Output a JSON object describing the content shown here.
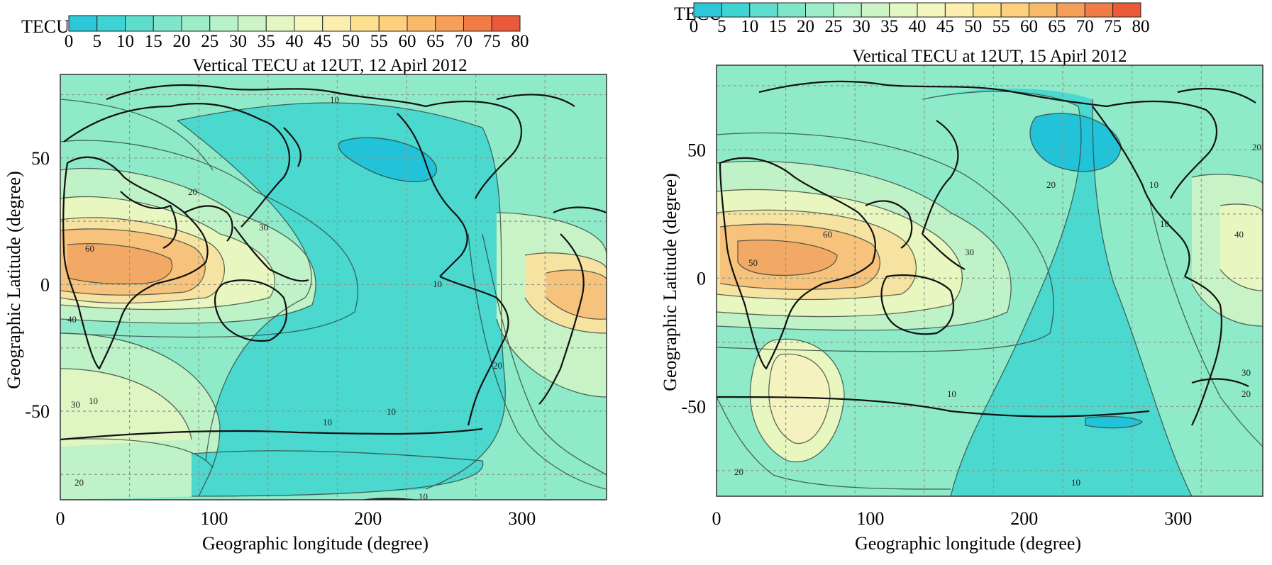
{
  "colorbar": {
    "unit_label": "TECU",
    "ticks": [
      "0",
      "5",
      "10",
      "15",
      "20",
      "25",
      "30",
      "35",
      "40",
      "45",
      "50",
      "55",
      "60",
      "65",
      "70",
      "75",
      "80"
    ],
    "colors": [
      "#2cc7d8",
      "#3fd3d3",
      "#5fddcc",
      "#80e6c9",
      "#9dedc8",
      "#b7f2c8",
      "#cdf4c6",
      "#e2f7c4",
      "#f3f6bf",
      "#fbeeae",
      "#fde18f",
      "#fcd07c",
      "#f9bb6a",
      "#f59f58",
      "#f07d45",
      "#ea5a38"
    ]
  },
  "maps": [
    {
      "title": "Vertical TECU at 12UT, 12 Apirl 2012",
      "y_ticks": [
        "50",
        "0",
        "-50"
      ],
      "x_ticks": [
        "0",
        "100",
        "200",
        "300"
      ],
      "x_label": "Geographic longitude (degree)",
      "y_label": "Geographic Latitude (degree)",
      "contour_labels": [
        "10",
        "10",
        "10",
        "10",
        "20",
        "20",
        "30",
        "30",
        "40",
        "60",
        "10",
        "10",
        "20"
      ]
    },
    {
      "title": "Vertical TECU at 12UT, 15 Apirl 2012",
      "y_ticks": [
        "50",
        "0",
        "-50"
      ],
      "x_ticks": [
        "0",
        "100",
        "200",
        "300"
      ],
      "x_label": "Geographic longitude (degree)",
      "y_label": "Geographic Latitude (degree)",
      "contour_labels": [
        "20",
        "10",
        "30",
        "50",
        "60",
        "10",
        "10",
        "20",
        "30",
        "40",
        "20",
        "10",
        "20"
      ]
    }
  ]
}
